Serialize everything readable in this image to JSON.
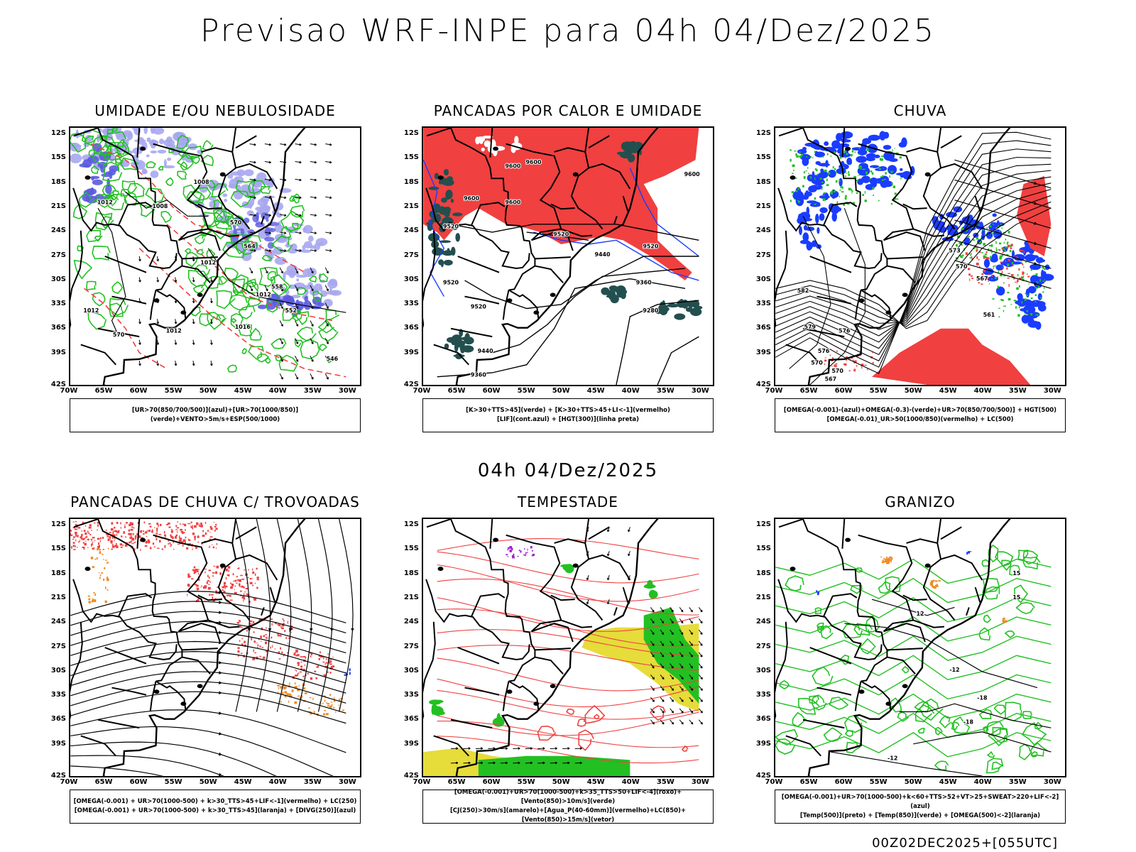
{
  "title": "Previsao WRF-INPE  para 04h 04/Dez/2025",
  "mid_title": "04h 04/Dez/2025",
  "footer": "00Z02DEC2025+[055UTC]",
  "lat_labels": [
    "12S",
    "15S",
    "18S",
    "21S",
    "24S",
    "27S",
    "30S",
    "33S",
    "36S",
    "39S",
    "42S"
  ],
  "lon_labels": [
    "70W",
    "65W",
    "60W",
    "55W",
    "50W",
    "45W",
    "40W",
    "35W",
    "30W"
  ],
  "colors": {
    "blue": "#1a3cff",
    "lavender": "#a7a7f0",
    "green": "#22c022",
    "red": "#f04040",
    "darkteal": "#234f4f",
    "yellow": "#e6dc3a",
    "orange": "#f08a24",
    "purple": "#a020d0"
  },
  "panels": [
    {
      "title": "UMIDADE E/OU NEBULOSIDADE",
      "legend": [
        "[UR>70(850/700/500)](azul)+[UR>70(1000/850)](verde)+VENTO>5m/s+ESP(500/1000)"
      ],
      "labels": [
        {
          "t": "1008",
          "lon": -51,
          "lat": -17
        },
        {
          "t": "1008",
          "lon": -57,
          "lat": -20
        },
        {
          "t": "1012",
          "lon": -65,
          "lat": -19.5
        },
        {
          "t": "1012",
          "lon": -50,
          "lat": -27
        },
        {
          "t": "1012",
          "lon": -42,
          "lat": -31
        },
        {
          "t": "1012",
          "lon": -55,
          "lat": -35.5
        },
        {
          "t": "1016",
          "lon": -45,
          "lat": -35
        },
        {
          "t": "1012",
          "lon": -67,
          "lat": -33
        },
        {
          "t": "570",
          "lon": -46,
          "lat": -22
        },
        {
          "t": "564",
          "lon": -44,
          "lat": -25
        },
        {
          "t": "558",
          "lon": -40,
          "lat": -30
        },
        {
          "t": "552",
          "lon": -38,
          "lat": -33
        },
        {
          "t": "570",
          "lon": -63,
          "lat": -36
        },
        {
          "t": "546",
          "lon": -32,
          "lat": -39
        }
      ]
    },
    {
      "title": "PANCADAS POR CALOR E UMIDADE",
      "legend": [
        "[K>30+TTS>45](verde) + [K>30+TTS>45+LI<-1](vermelho)",
        "[LIF](cont.azul) + [HGT(300)](linha preta)"
      ],
      "labels": [
        {
          "t": "9600",
          "lon": -57,
          "lat": -15
        },
        {
          "t": "9600",
          "lon": -54,
          "lat": -14.5
        },
        {
          "t": "9600",
          "lon": -63,
          "lat": -19
        },
        {
          "t": "9600",
          "lon": -57,
          "lat": -19.5
        },
        {
          "t": "9520",
          "lon": -66,
          "lat": -22.5
        },
        {
          "t": "9520",
          "lon": -50,
          "lat": -23.5
        },
        {
          "t": "9520",
          "lon": -37,
          "lat": -25
        },
        {
          "t": "9520",
          "lon": -66,
          "lat": -29.5
        },
        {
          "t": "9520",
          "lon": -62,
          "lat": -32.5
        },
        {
          "t": "9440",
          "lon": -44,
          "lat": -26
        },
        {
          "t": "9440",
          "lon": -61,
          "lat": -38
        },
        {
          "t": "9360",
          "lon": -38,
          "lat": -29.5
        },
        {
          "t": "9360",
          "lon": -62,
          "lat": -41
        },
        {
          "t": "9280",
          "lon": -37,
          "lat": -33
        },
        {
          "t": "9600",
          "lon": -31,
          "lat": -16
        }
      ]
    },
    {
      "title": "CHUVA",
      "legend": [
        "[OMEGA(-0.001)-(azul)+OMEGA(-0.3)-(verde)+UR>70(850/700/500)] + HGT(500)",
        "[OMEGA(-0.01)_UR>50(1000/850)(vermelho) + LC(500)"
      ],
      "labels": [
        {
          "t": "582",
          "lon": -66,
          "lat": -30.5
        },
        {
          "t": "576",
          "lon": -60,
          "lat": -35.5
        },
        {
          "t": "576",
          "lon": -63,
          "lat": -38
        },
        {
          "t": "570",
          "lon": -64,
          "lat": -39.5
        },
        {
          "t": "570",
          "lon": -61,
          "lat": -40.5
        },
        {
          "t": "573",
          "lon": -44,
          "lat": -25.5
        },
        {
          "t": "570",
          "lon": -43,
          "lat": -27.5
        },
        {
          "t": "567",
          "lon": -40,
          "lat": -29
        },
        {
          "t": "561",
          "lon": -39,
          "lat": -33.5
        },
        {
          "t": "567",
          "lon": -62,
          "lat": -41.5
        },
        {
          "t": "579",
          "lon": -65,
          "lat": -35
        }
      ]
    },
    {
      "title": "PANCADAS DE CHUVA C/ TROVOADAS",
      "legend": [
        "[OMEGA(-0.001) + UR>70(1000-500) + k>30_TTS>45+LIF<-1](vermelho) + LC(250)",
        "[OMEGA(-0.001) + UR>70(1000-500) + k>30_TTS>45](laranja) + [DIVG(250)](azul)"
      ],
      "labels": []
    },
    {
      "title": "TEMPESTADE",
      "legend": [
        "[OMEGA(-0.001)+UR>70(1000-500)+k>35_TTS>50+LIF<-4](roxo)+[Vento(850)>10m/s](verde)",
        "[CJ(250)>30m/s](amarelo)+[Agua_P(40-60mm)](vermelho)+LC(850)+[Vento(850)>15m/s](vetor)"
      ],
      "labels": []
    },
    {
      "title": "GRANIZO",
      "legend": [
        "[OMEGA(-0.001)+UR>70(1000-500)+k<60+TTS>52+VT>25+SWEAT>220+LIF<-2](azul)",
        "[Temp(500)](preto) + [Temp(850)](verde) + [OMEGA(500)<-2](laranja)"
      ],
      "labels": [
        {
          "t": "-12",
          "lon": -44,
          "lat": -29
        },
        {
          "t": "-18",
          "lon": -40,
          "lat": -32.5
        },
        {
          "t": "-18",
          "lon": -42,
          "lat": -35.5
        },
        {
          "t": "-12",
          "lon": -53,
          "lat": -40
        },
        {
          "t": "15",
          "lon": -35,
          "lat": -20
        },
        {
          "t": "15",
          "lon": -35,
          "lat": -17
        },
        {
          "t": "12",
          "lon": -49,
          "lat": -22
        }
      ]
    }
  ]
}
